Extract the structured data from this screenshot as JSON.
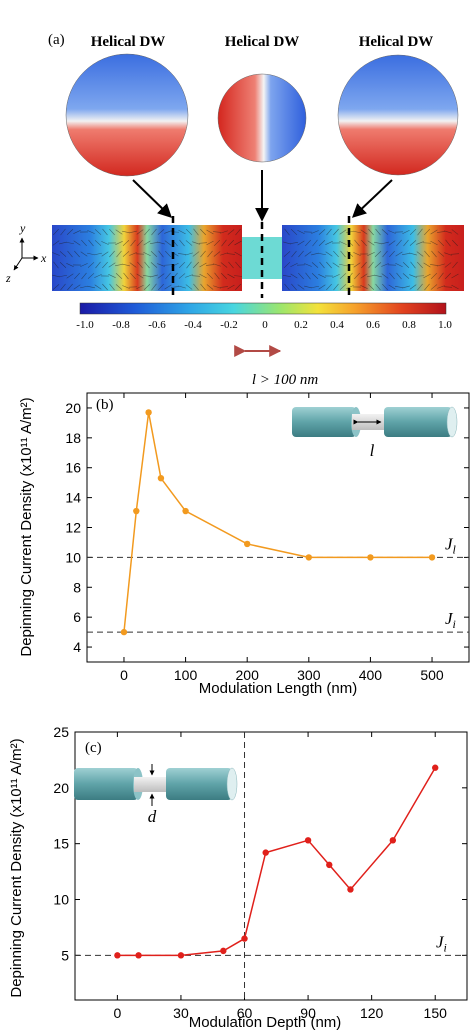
{
  "panel_a": {
    "label": "(a)",
    "dw_labels": [
      "Helical DW",
      "Helical DW",
      "Helical DW"
    ],
    "axes": {
      "y": "y",
      "x": "x",
      "z": "z"
    },
    "colorbar": {
      "ticks": [
        "-1.0",
        "-0.8",
        "-0.6",
        "-0.4",
        "-0.2",
        "0",
        "0.2",
        "0.4",
        "0.6",
        "0.8",
        "1.0"
      ],
      "colors": [
        "#1a1aa6",
        "#1f5bd8",
        "#2fa6e6",
        "#48d6e0",
        "#9ee66b",
        "#f3e23b",
        "#f6a22c",
        "#e2431f",
        "#b2121b"
      ]
    },
    "length_note": "l > 100 nm"
  },
  "chart_data": [
    {
      "type": "line",
      "panel_label": "(b)",
      "x": [
        0,
        20,
        40,
        60,
        100,
        200,
        300,
        400,
        500
      ],
      "y": [
        5.0,
        13.1,
        19.7,
        15.3,
        13.1,
        10.9,
        10.0,
        10.0,
        10.0
      ],
      "xlabel": "Modulation Length (nm)",
      "ylabel": "Depinning Current Density (x10¹¹ A/m²)",
      "xticks": [
        "0",
        "100",
        "200",
        "300",
        "400",
        "500"
      ],
      "yticks": [
        "4",
        "6",
        "8",
        "10",
        "12",
        "14",
        "16",
        "18",
        "20"
      ],
      "xlim": [
        -60,
        560
      ],
      "ylim": [
        3,
        21
      ],
      "color": "#f29a1f",
      "reference_lines": [
        {
          "label": "J_l",
          "main": "J",
          "sub": "l",
          "y": 10
        },
        {
          "label": "J_i",
          "main": "J",
          "sub": "i",
          "y": 5
        }
      ],
      "inset_label": "l"
    },
    {
      "type": "line",
      "panel_label": "(c)",
      "x": [
        0,
        10,
        30,
        50,
        60,
        70,
        90,
        100,
        110,
        130,
        150
      ],
      "y": [
        5.0,
        5.0,
        5.0,
        5.4,
        6.5,
        14.2,
        15.3,
        13.1,
        10.9,
        15.3,
        21.8
      ],
      "xlabel": "Modulation Depth (nm)",
      "ylabel": "Depinning Current Density (x10¹¹ A/m²)",
      "xticks": [
        "0",
        "30",
        "60",
        "90",
        "120",
        "150"
      ],
      "yticks": [
        "5",
        "10",
        "15",
        "20",
        "25"
      ],
      "xlim": [
        -20,
        165
      ],
      "ylim": [
        1,
        25
      ],
      "color": "#e0201b",
      "reference_lines": [
        {
          "label": "J_i",
          "main": "J",
          "sub": "i",
          "y": 5
        }
      ],
      "vertical_line_x": 60,
      "inset_label": "d"
    }
  ]
}
